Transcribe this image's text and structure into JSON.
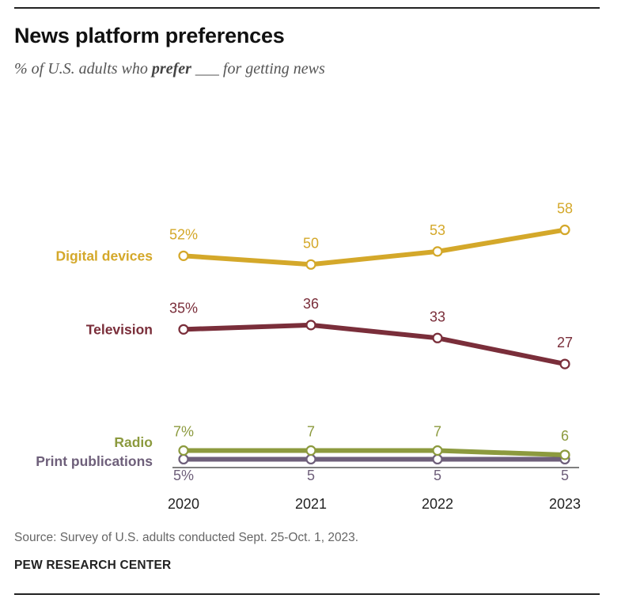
{
  "header": {
    "title": "News platform preferences",
    "subtitle_pre": "% of U.S. adults who ",
    "subtitle_bold": "prefer",
    "subtitle_post": " ___ for getting news"
  },
  "chart_data": {
    "type": "line",
    "title": "News platform preferences",
    "subtitle": "% of U.S. adults who prefer ___ for getting news",
    "x": [
      "2020",
      "2021",
      "2022",
      "2023"
    ],
    "series": [
      {
        "name": "Digital devices",
        "color": "#d4a82a",
        "values": [
          52,
          50,
          53,
          58
        ],
        "labels": [
          "52%",
          "50",
          "53",
          "58"
        ]
      },
      {
        "name": "Television",
        "color": "#7a2e3a",
        "values": [
          35,
          36,
          33,
          27
        ],
        "labels": [
          "35%",
          "36",
          "33",
          "27"
        ]
      },
      {
        "name": "Radio",
        "color": "#8c9a3e",
        "values": [
          7,
          7,
          7,
          6
        ],
        "labels": [
          "7%",
          "7",
          "7",
          "6"
        ]
      },
      {
        "name": "Print publications",
        "color": "#6e5f7a",
        "values": [
          5,
          5,
          5,
          5
        ],
        "labels": [
          "5%",
          "5",
          "5",
          "5"
        ]
      }
    ],
    "grid": false,
    "legend": "direct labels left of lines"
  },
  "footer": {
    "source": "Source: Survey of U.S. adults conducted Sept. 25-Oct. 1, 2023.",
    "org": "PEW RESEARCH CENTER"
  }
}
